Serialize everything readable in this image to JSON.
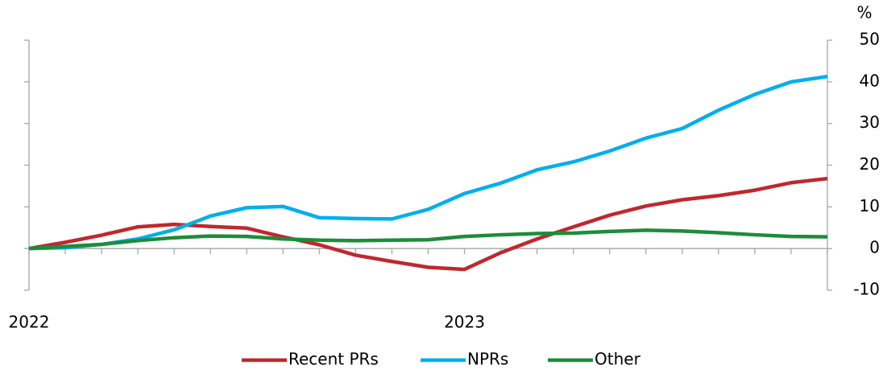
{
  "chart_data": {
    "type": "line",
    "ylabel": "%",
    "categories": [
      "2022",
      null,
      null,
      null,
      null,
      null,
      null,
      null,
      null,
      null,
      null,
      null,
      "2023",
      null,
      null,
      null,
      null,
      null,
      null,
      null,
      null,
      null,
      null
    ],
    "series": [
      {
        "name": "Recent PRs",
        "color": "#c1272d",
        "values": [
          0,
          1.5,
          3.2,
          5.2,
          5.8,
          5.3,
          4.9,
          2.8,
          0.9,
          -1.6,
          -3.1,
          -4.5,
          -5.0,
          -1.0,
          2.3,
          5.2,
          8.0,
          10.2,
          11.7,
          12.7,
          14.0,
          15.8,
          16.8
        ]
      },
      {
        "name": "NPRs",
        "color": "#00aeef",
        "values": [
          0,
          0.2,
          1.0,
          2.3,
          4.5,
          7.8,
          9.8,
          10.1,
          7.4,
          7.2,
          7.1,
          9.4,
          13.2,
          15.7,
          18.9,
          20.8,
          23.4,
          26.5,
          28.8,
          33.2,
          37.0,
          40.0,
          41.3
        ]
      },
      {
        "name": "Other",
        "color": "#1d8c3b",
        "values": [
          0,
          0.5,
          1.0,
          1.9,
          2.6,
          3.0,
          2.9,
          2.3,
          2.0,
          1.9,
          2.0,
          2.1,
          2.9,
          3.3,
          3.6,
          3.7,
          4.1,
          4.4,
          4.2,
          3.8,
          3.3,
          2.9,
          2.8
        ]
      }
    ],
    "ylim": [
      -10,
      50
    ],
    "yticks": [
      -10,
      0,
      10,
      20,
      30,
      40,
      50
    ],
    "legend": "bottom"
  }
}
